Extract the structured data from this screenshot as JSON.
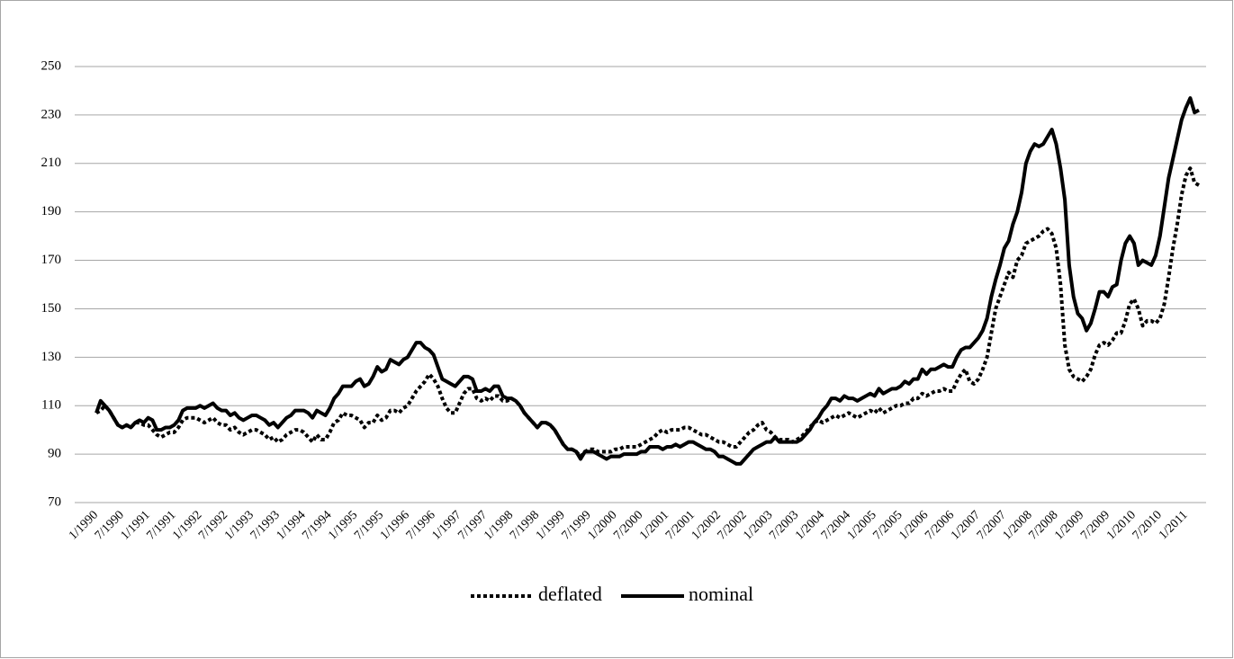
{
  "chart_data": {
    "type": "line",
    "categories": [
      "1/1990",
      null,
      null,
      null,
      null,
      null,
      "7/1990",
      null,
      null,
      null,
      null,
      null,
      "1/1991",
      null,
      null,
      null,
      null,
      null,
      "7/1991",
      null,
      null,
      null,
      null,
      null,
      "1/1992",
      null,
      null,
      null,
      null,
      null,
      "7/1992",
      null,
      null,
      null,
      null,
      null,
      "1/1993",
      null,
      null,
      null,
      null,
      null,
      "7/1993",
      null,
      null,
      null,
      null,
      null,
      "1/1994",
      null,
      null,
      null,
      null,
      null,
      "7/1994",
      null,
      null,
      null,
      null,
      null,
      "1/1995",
      null,
      null,
      null,
      null,
      null,
      "7/1995",
      null,
      null,
      null,
      null,
      null,
      "1/1996",
      null,
      null,
      null,
      null,
      null,
      "7/1996",
      null,
      null,
      null,
      null,
      null,
      "1/1997",
      null,
      null,
      null,
      null,
      null,
      "7/1997",
      null,
      null,
      null,
      null,
      null,
      "1/1998",
      null,
      null,
      null,
      null,
      null,
      "7/1998",
      null,
      null,
      null,
      null,
      null,
      "1/1999",
      null,
      null,
      null,
      null,
      null,
      "7/1999",
      null,
      null,
      null,
      null,
      null,
      "1/2000",
      null,
      null,
      null,
      null,
      null,
      "7/2000",
      null,
      null,
      null,
      null,
      null,
      "1/2001",
      null,
      null,
      null,
      null,
      null,
      "7/2001",
      null,
      null,
      null,
      null,
      null,
      "1/2002",
      null,
      null,
      null,
      null,
      null,
      "7/2002",
      null,
      null,
      null,
      null,
      null,
      "1/2003",
      null,
      null,
      null,
      null,
      null,
      "7/2003",
      null,
      null,
      null,
      null,
      null,
      "1/2004",
      null,
      null,
      null,
      null,
      null,
      "7/2004",
      null,
      null,
      null,
      null,
      null,
      "1/2005",
      null,
      null,
      null,
      null,
      null,
      "7/2005",
      null,
      null,
      null,
      null,
      null,
      "1/2006",
      null,
      null,
      null,
      null,
      null,
      "7/2006",
      null,
      null,
      null,
      null,
      null,
      "1/2007",
      null,
      null,
      null,
      null,
      null,
      "7/2007",
      null,
      null,
      null,
      null,
      null,
      "1/2008",
      null,
      null,
      null,
      null,
      null,
      "7/2008",
      null,
      null,
      null,
      null,
      null,
      "1/2009",
      null,
      null,
      null,
      null,
      null,
      "7/2009",
      null,
      null,
      null,
      null,
      null,
      "1/2010",
      null,
      null,
      null,
      null,
      null,
      "7/2010",
      null,
      null,
      null,
      null,
      null,
      "1/2011",
      null,
      null,
      null
    ],
    "series": [
      {
        "name": "deflated",
        "color": "#000000",
        "dash": true,
        "values": [
          107,
          108,
          110,
          108,
          105,
          102,
          101,
          102,
          101,
          103,
          103,
          102,
          102,
          100,
          98,
          97,
          98,
          99,
          99,
          101,
          104,
          105,
          105,
          105,
          104,
          103,
          104,
          105,
          103,
          102,
          102,
          100,
          101,
          99,
          98,
          99,
          100,
          100,
          99,
          98,
          96,
          97,
          95,
          96,
          98,
          99,
          100,
          100,
          99,
          97,
          95,
          98,
          96,
          96,
          99,
          103,
          104,
          107,
          106,
          106,
          105,
          104,
          101,
          103,
          103,
          106,
          104,
          105,
          108,
          108,
          107,
          109,
          110,
          113,
          116,
          118,
          120,
          123,
          121,
          118,
          113,
          109,
          107,
          107,
          111,
          115,
          117,
          117,
          113,
          112,
          113,
          112,
          114,
          114,
          112,
          112,
          113,
          112,
          110,
          107,
          105,
          103,
          101,
          103,
          103,
          102,
          100,
          97,
          94,
          92,
          92,
          91,
          89,
          91,
          92,
          92,
          91,
          91,
          91,
          91,
          92,
          92,
          93,
          93,
          93,
          93,
          94,
          95,
          96,
          97,
          99,
          100,
          99,
          100,
          100,
          100,
          101,
          101,
          100,
          99,
          98,
          98,
          97,
          96,
          95,
          95,
          94,
          93,
          93,
          95,
          97,
          99,
          100,
          102,
          103,
          100,
          99,
          97,
          96,
          96,
          96,
          95,
          96,
          97,
          99,
          101,
          103,
          104,
          103,
          104,
          105,
          106,
          105,
          106,
          107,
          106,
          105,
          106,
          107,
          108,
          107,
          109,
          107,
          108,
          109,
          110,
          110,
          111,
          111,
          113,
          113,
          115,
          114,
          115,
          116,
          116,
          117,
          116,
          116,
          120,
          123,
          125,
          120,
          119,
          121,
          125,
          130,
          140,
          150,
          155,
          160,
          165,
          163,
          170,
          172,
          177,
          178,
          179,
          180,
          182,
          183,
          181,
          175,
          160,
          135,
          125,
          122,
          121,
          120,
          122,
          125,
          131,
          135,
          136,
          135,
          137,
          140,
          140,
          145,
          152,
          154,
          150,
          143,
          145,
          145,
          144,
          146,
          152,
          163,
          175,
          185,
          197,
          205,
          208,
          202,
          201
        ]
      },
      {
        "name": "nominal",
        "color": "#000000",
        "dash": false,
        "values": [
          107,
          112,
          110,
          108,
          105,
          102,
          101,
          102,
          101,
          103,
          104,
          103,
          105,
          104,
          100,
          100,
          101,
          101,
          102,
          104,
          108,
          109,
          109,
          109,
          110,
          109,
          110,
          111,
          109,
          108,
          108,
          106,
          107,
          105,
          104,
          105,
          106,
          106,
          105,
          104,
          102,
          103,
          101,
          103,
          105,
          106,
          108,
          108,
          108,
          107,
          105,
          108,
          107,
          106,
          109,
          113,
          115,
          118,
          118,
          118,
          120,
          121,
          118,
          119,
          122,
          126,
          124,
          125,
          129,
          128,
          127,
          129,
          130,
          133,
          136,
          136,
          134,
          133,
          131,
          126,
          121,
          120,
          119,
          118,
          120,
          122,
          122,
          121,
          116,
          116,
          117,
          116,
          118,
          118,
          114,
          113,
          113,
          112,
          110,
          107,
          105,
          103,
          101,
          103,
          103,
          102,
          100,
          97,
          94,
          92,
          92,
          91,
          88,
          91,
          91,
          91,
          90,
          89,
          88,
          89,
          89,
          89,
          90,
          90,
          90,
          90,
          91,
          91,
          93,
          93,
          93,
          92,
          93,
          93,
          94,
          93,
          94,
          95,
          95,
          94,
          93,
          92,
          92,
          91,
          89,
          89,
          88,
          87,
          86,
          86,
          88,
          90,
          92,
          93,
          94,
          95,
          95,
          97,
          95,
          95,
          95,
          95,
          95,
          96,
          98,
          100,
          103,
          105,
          108,
          110,
          113,
          113,
          112,
          114,
          113,
          113,
          112,
          113,
          114,
          115,
          114,
          117,
          115,
          116,
          117,
          117,
          118,
          120,
          119,
          121,
          121,
          125,
          123,
          125,
          125,
          126,
          127,
          126,
          126,
          130,
          133,
          134,
          134,
          136,
          138,
          141,
          146,
          155,
          162,
          168,
          175,
          178,
          185,
          190,
          198,
          210,
          215,
          218,
          217,
          218,
          221,
          224,
          218,
          208,
          195,
          168,
          155,
          148,
          146,
          141,
          144,
          150,
          157,
          157,
          155,
          159,
          160,
          170,
          177,
          180,
          177,
          168,
          170,
          169,
          168,
          172,
          180,
          192,
          204,
          212,
          220,
          228,
          233,
          237,
          231,
          232
        ]
      }
    ],
    "ylim": [
      70,
      250
    ],
    "yticks": [
      70,
      90,
      110,
      130,
      150,
      170,
      190,
      210,
      230,
      250
    ],
    "grid": true,
    "legend": "bottom"
  }
}
